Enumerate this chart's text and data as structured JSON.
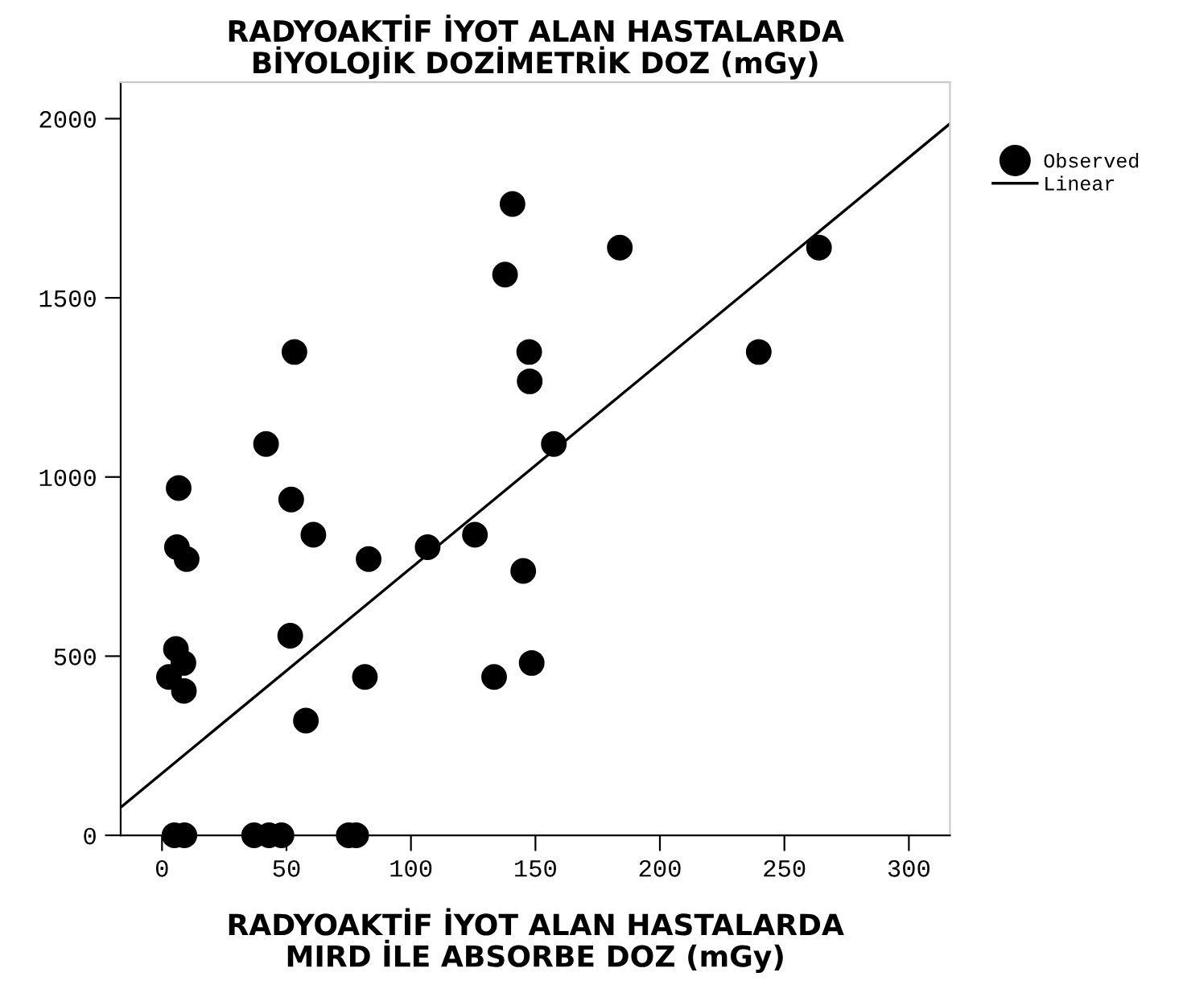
{
  "chart_data": {
    "type": "scatter",
    "title": "RADYOAKTİF İYOT ALAN HASTALARDA\nBİYOLOJİK DOZİMETRİK DOZ (mGy)",
    "xlabel": "RADYOAKTİF İYOT ALAN HASTALARDA\nMIRD İLE ABSORBE DOZ (mGy)",
    "xlim": [
      -16.6,
      316.5
    ],
    "ylim": [
      0,
      2102
    ],
    "xticks": [
      0,
      50,
      100,
      150,
      200,
      250,
      300
    ],
    "yticks": [
      0,
      500,
      1000,
      1500,
      2000
    ],
    "grid": false,
    "legend": "right",
    "marker": "circle",
    "series": [
      {
        "name": "Observed",
        "color": "#000000",
        "x": [
          140.8,
          137.8,
          147.5,
          147.7,
          157.4,
          53.2,
          41.8,
          6.7,
          51.9,
          183.9,
          263.9,
          239.7,
          60.8,
          6.0,
          9.9,
          83.0,
          106.7,
          125.7,
          145.1,
          5.6,
          8.6,
          2.8,
          8.8,
          51.5,
          81.5,
          57.8,
          133.4,
          148.5,
          5,
          9,
          37,
          43,
          48,
          75,
          78
        ],
        "values": [
          1762,
          1565,
          1349,
          1267,
          1092,
          1349,
          1092,
          969,
          937,
          1640,
          1640,
          1349,
          839,
          804,
          771,
          771,
          804,
          839,
          738,
          520,
          481,
          442,
          403,
          557,
          442,
          320,
          442,
          481,
          0,
          0,
          0,
          0,
          0,
          0,
          0
        ]
      },
      {
        "name": "Linear",
        "type": "line",
        "color": "#000000",
        "line_style": "solid",
        "marker": "none",
        "x": [
          -16.6,
          316.5
        ],
        "values": [
          78,
          1986
        ]
      }
    ]
  }
}
